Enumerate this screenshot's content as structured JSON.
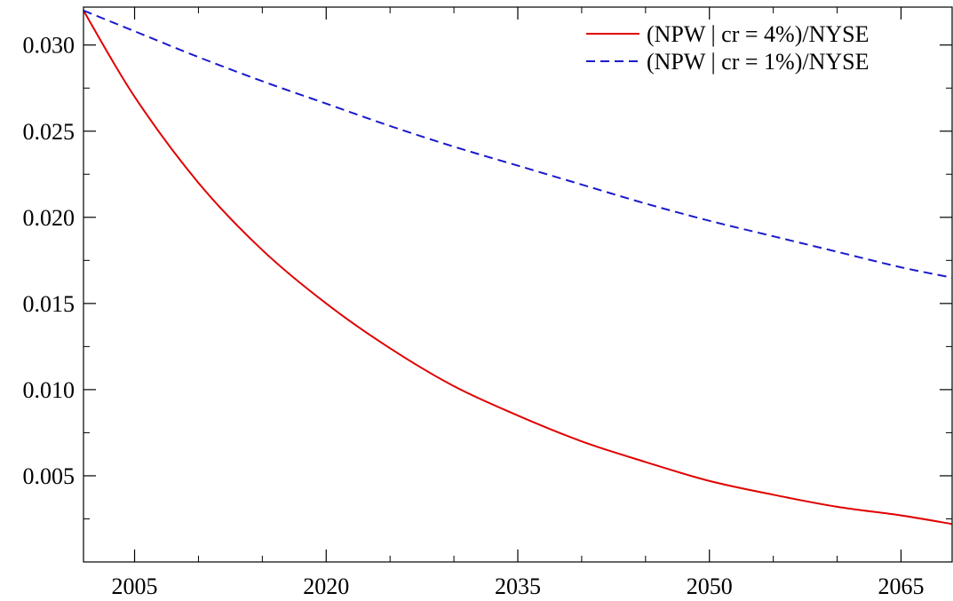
{
  "chart_data": {
    "type": "line",
    "title": "",
    "xlabel": "",
    "ylabel": "",
    "xlim": [
      2001,
      2069
    ],
    "ylim": [
      0.0,
      0.0322
    ],
    "x_ticks": [
      2005,
      2020,
      2035,
      2050,
      2065
    ],
    "x_tick_labels": [
      "2005",
      "2020",
      "2035",
      "2050",
      "2065"
    ],
    "x_minor_step": 5,
    "y_ticks": [
      0.005,
      0.01,
      0.015,
      0.02,
      0.025,
      0.03
    ],
    "y_tick_labels": [
      "0.005",
      "0.010",
      "0.015",
      "0.020",
      "0.025",
      "0.030"
    ],
    "y_minor_step": 0.0025,
    "grid": false,
    "legend_position": "top-right",
    "series": [
      {
        "name": "(NPW | cr = 4%)/NYSE",
        "color": "#e00000",
        "style": "solid",
        "x": [
          2001,
          2005,
          2010,
          2015,
          2020,
          2025,
          2030,
          2035,
          2040,
          2045,
          2050,
          2055,
          2060,
          2065,
          2069
        ],
        "y": [
          0.032,
          0.027,
          0.022,
          0.0181,
          0.015,
          0.0124,
          0.0102,
          0.0085,
          0.007,
          0.0058,
          0.0047,
          0.0039,
          0.0032,
          0.0027,
          0.0022
        ]
      },
      {
        "name": "(NPW | cr = 1%)/NYSE",
        "color": "#1a1acc",
        "style": "dashed",
        "x": [
          2001,
          2005,
          2010,
          2015,
          2020,
          2025,
          2030,
          2035,
          2040,
          2045,
          2050,
          2055,
          2060,
          2065,
          2069
        ],
        "y": [
          0.032,
          0.0308,
          0.0293,
          0.0279,
          0.0266,
          0.0253,
          0.0241,
          0.023,
          0.0219,
          0.0208,
          0.0198,
          0.0189,
          0.018,
          0.0171,
          0.0165
        ]
      }
    ]
  }
}
